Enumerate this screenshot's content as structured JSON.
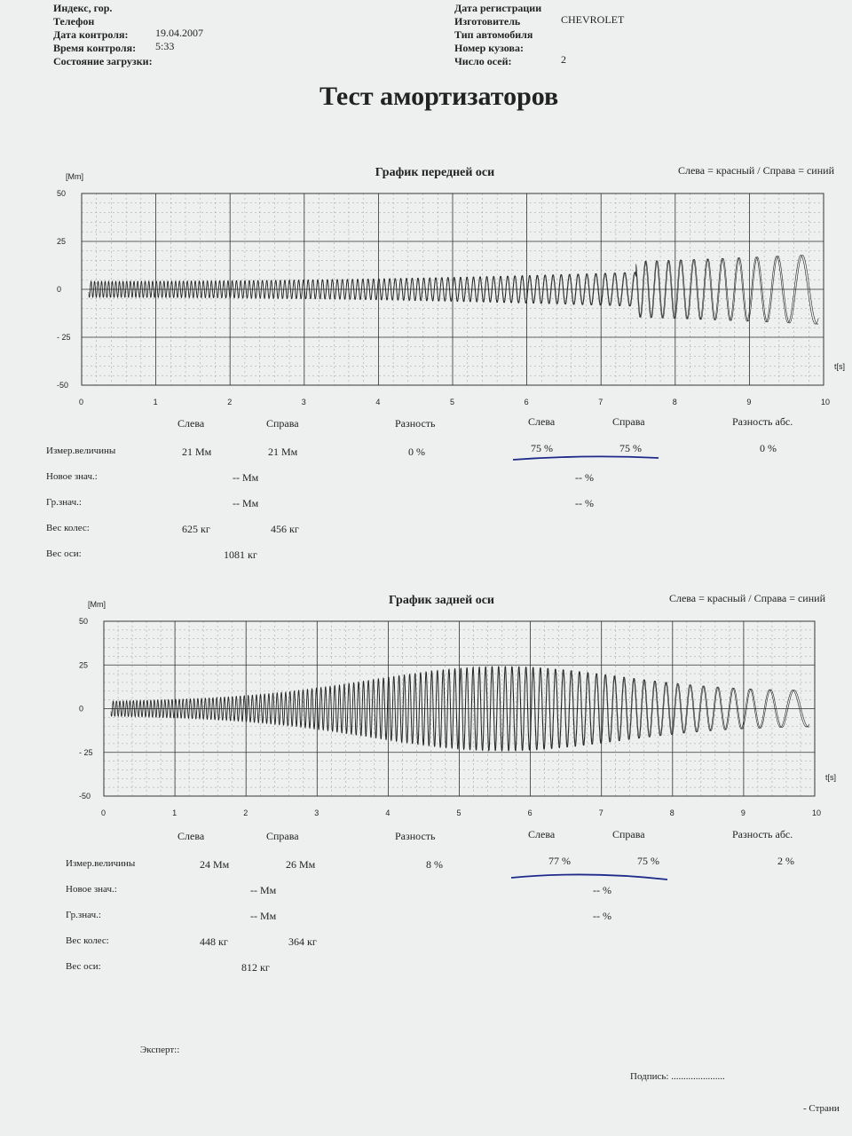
{
  "header": {
    "left": [
      {
        "label": "Индекс, гор."
      },
      {
        "label": "Телефон"
      },
      {
        "label": "Дата контроля:",
        "value": "19.04.2007"
      },
      {
        "label": "Время контроля:",
        "value": "5:33"
      },
      {
        "label": "Состояние загрузки:"
      }
    ],
    "right": [
      {
        "label": "Дата регистрации"
      },
      {
        "label": "Изготовитель",
        "value": "CHEVROLET"
      },
      {
        "label": "Тип автомобиля"
      },
      {
        "label": "Номер кузова:"
      },
      {
        "label": "Число осей:",
        "value": "2"
      }
    ]
  },
  "title": "Тест амортизаторов",
  "sections": [
    {
      "graph_title": "График передней оси",
      "legend_note": "Слева = красный / Справа = синий",
      "y_unit": "[Mm]",
      "x_unit": "t[s]",
      "ylim": [
        -50,
        50
      ],
      "yticks": [
        -50,
        {
          "value": -25,
          "label": "- 25"
        },
        0,
        25,
        50
      ],
      "xlim": [
        0,
        10
      ],
      "xticks": [
        0,
        1,
        2,
        3,
        4,
        5,
        6,
        7,
        8,
        9,
        10
      ],
      "columns": [
        "Слева",
        "Справа",
        "Разность",
        "Слева",
        "Справа",
        "Разность абс."
      ],
      "rows": [
        {
          "label": "Измер.величины",
          "values": [
            "21 Мм",
            "21 Мм",
            "0 %",
            "75 %",
            "75 %",
            "0 %"
          ]
        },
        {
          "label": "Новое знач.:",
          "values": [
            "-- Мм",
            "-- %"
          ]
        },
        {
          "label": "Гр.знач.:",
          "values": [
            "-- Мм",
            "-- %"
          ]
        },
        {
          "label": "Вес колес:",
          "values": [
            "625 кг",
            "456 кг"
          ]
        },
        {
          "label": "Вес оси:",
          "values": [
            "1081 кг"
          ]
        }
      ]
    },
    {
      "graph_title": "График задней оси",
      "legend_note": "Слева = красный / Справа = синий",
      "y_unit": "[Mm]",
      "x_unit": "t[s]",
      "ylim": [
        -50,
        50
      ],
      "yticks": [
        -50,
        {
          "value": -25,
          "label": "- 25"
        },
        0,
        25,
        50
      ],
      "xlim": [
        0,
        10
      ],
      "xticks": [
        0,
        1,
        2,
        3,
        4,
        5,
        6,
        7,
        8,
        9,
        10
      ],
      "columns": [
        "Слева",
        "Справа",
        "Разность",
        "Слева",
        "Справа",
        "Разность абс."
      ],
      "rows": [
        {
          "label": "Измер.величины",
          "values": [
            "24 Мм",
            "26 Мм",
            "8 %",
            "77 %",
            "75 %",
            "2 %"
          ]
        },
        {
          "label": "Новое знач.:",
          "values": [
            "-- Мм",
            "-- %"
          ]
        },
        {
          "label": "Гр.знач.:",
          "values": [
            "-- Мм",
            "-- %"
          ]
        },
        {
          "label": "Вес колес:",
          "values": [
            "448 кг",
            "364 кг"
          ]
        },
        {
          "label": "Вес оси:",
          "values": [
            "812 кг"
          ]
        }
      ]
    }
  ],
  "footer": {
    "expert": "Эксперт::",
    "signature": "Подпись: ......................",
    "page": "- Страни"
  }
}
